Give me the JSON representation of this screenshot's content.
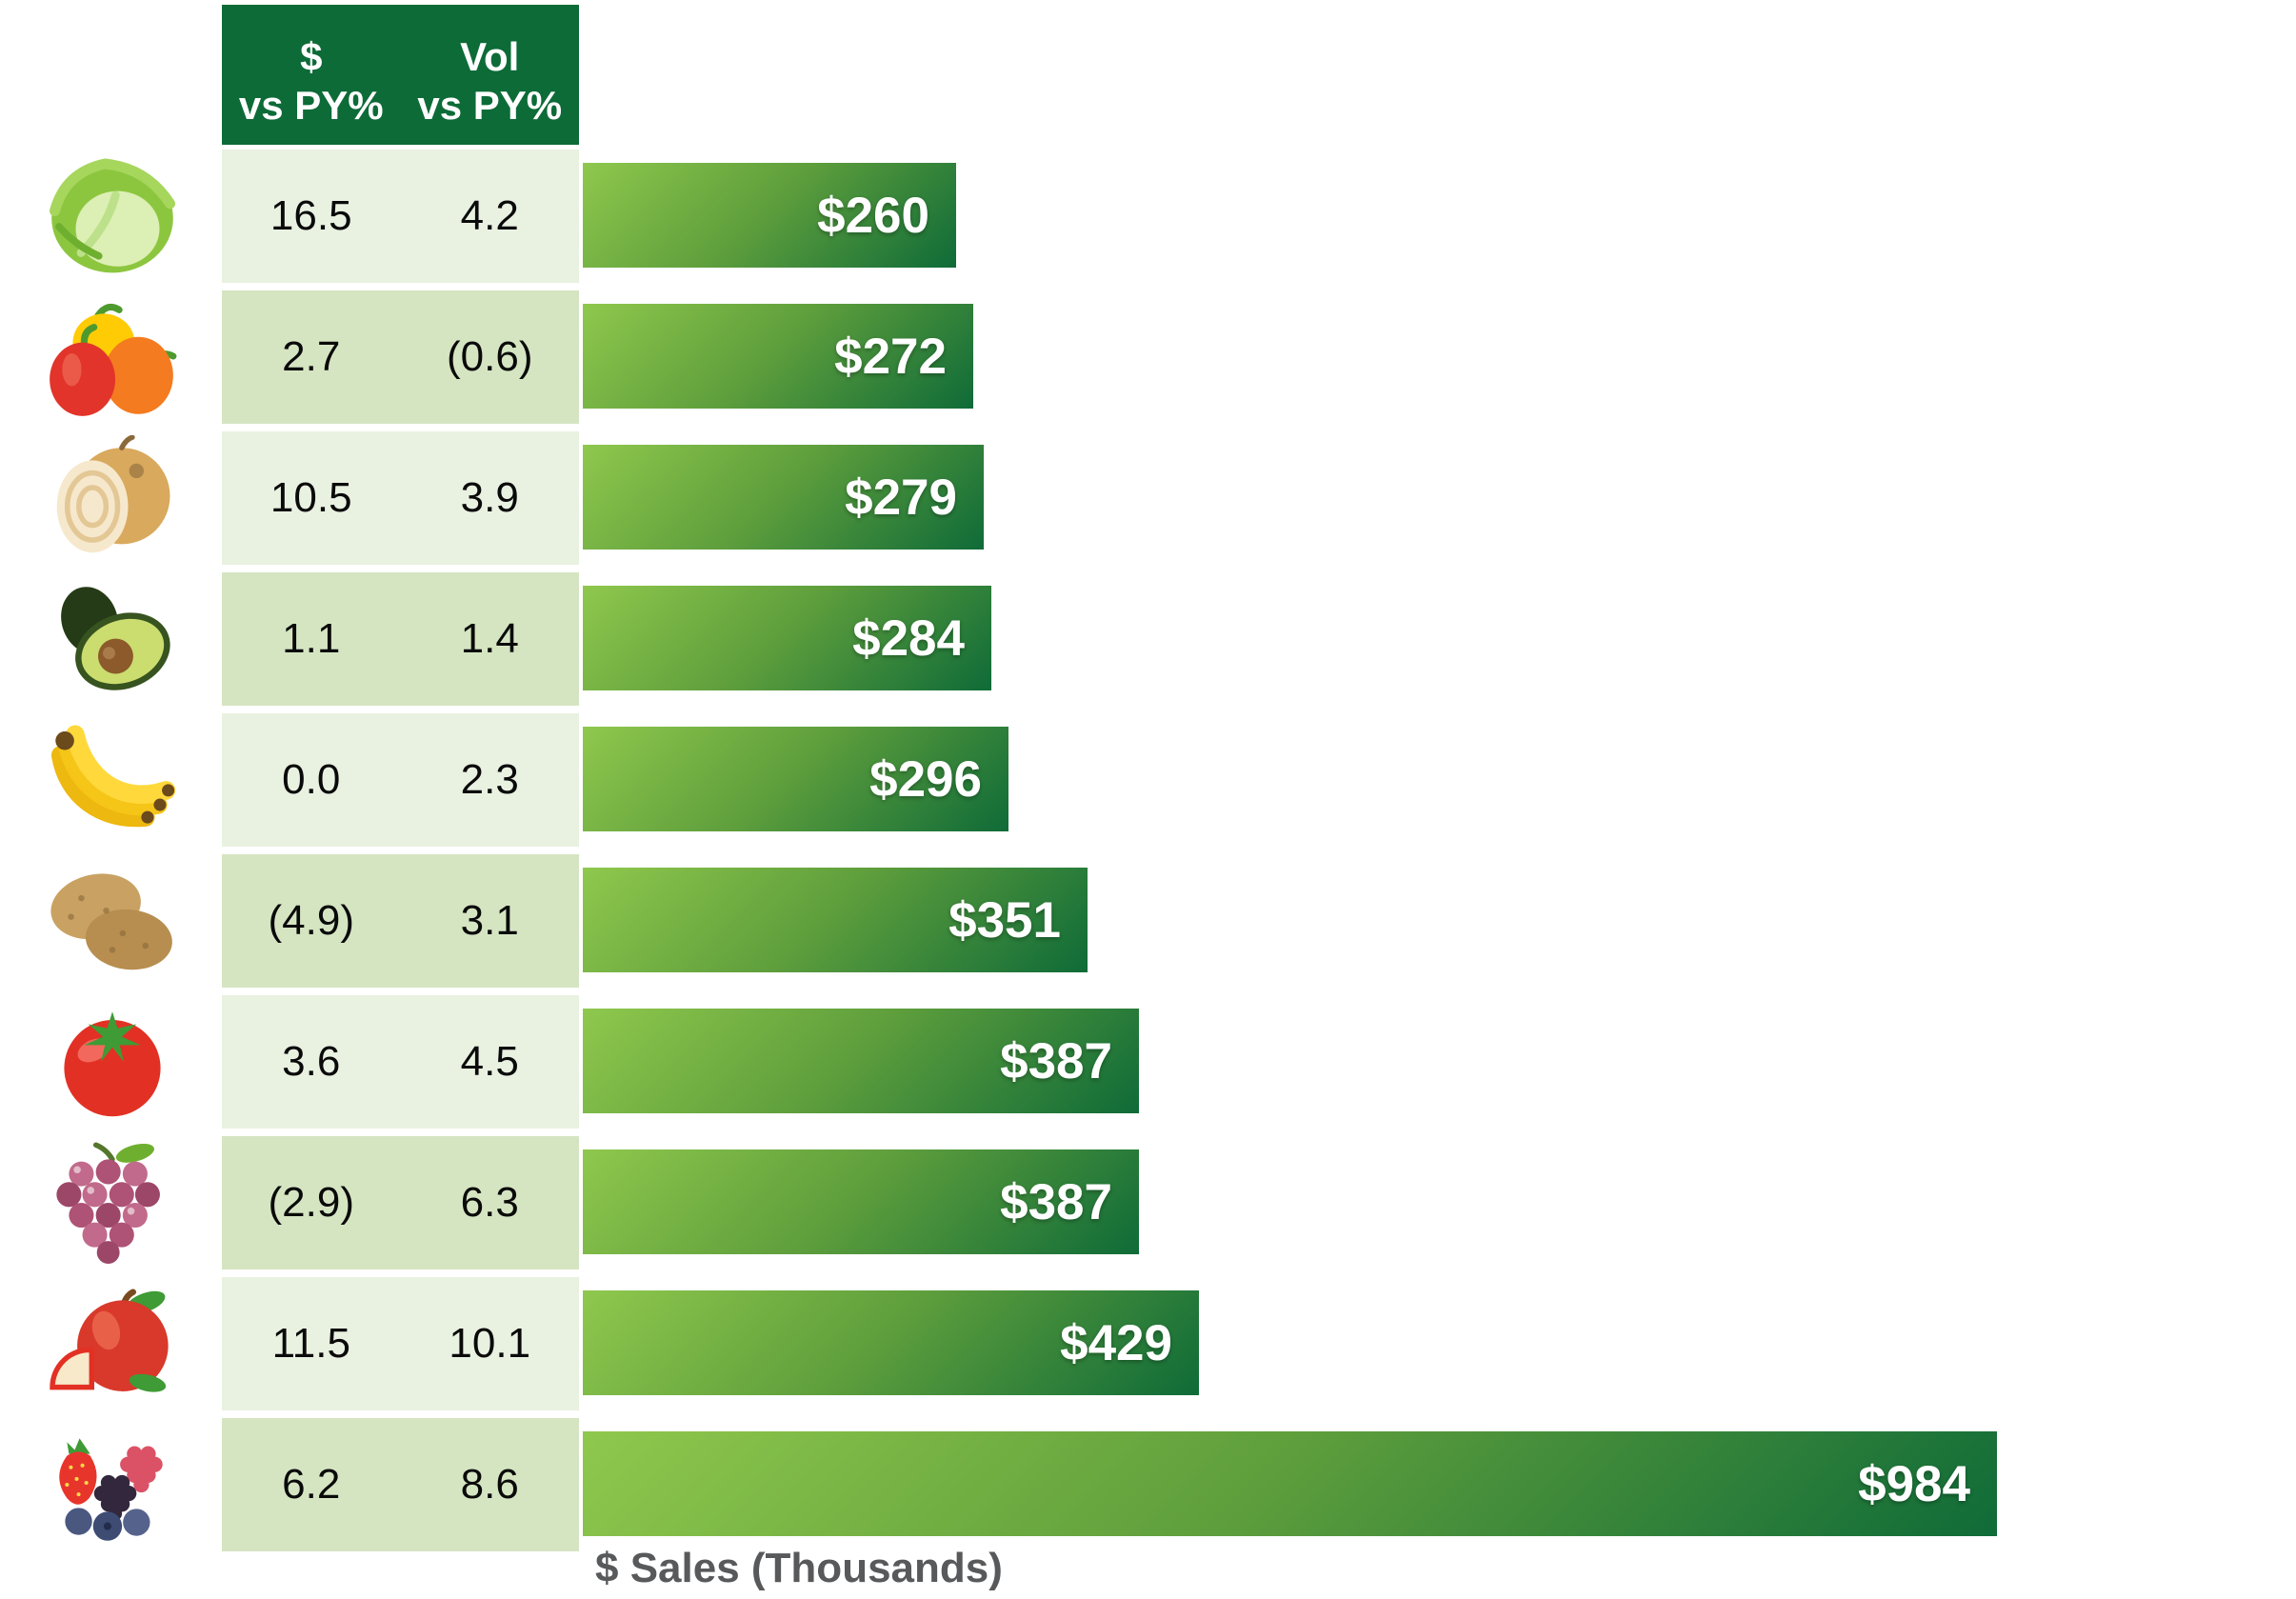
{
  "table": {
    "header": {
      "col1_line1": "$",
      "col1_line2": "vs PY%",
      "col2_line1": "Vol",
      "col2_line2": "vs PY%"
    }
  },
  "rows": [
    {
      "produce": "lettuce",
      "icon": "lettuce-image",
      "dollar_vs_py": "16.5",
      "vol_vs_py": "4.2",
      "sales": "$260",
      "sales_value": 260
    },
    {
      "produce": "bell peppers",
      "icon": "bell-peppers-image",
      "dollar_vs_py": "2.7",
      "vol_vs_py": "(0.6)",
      "sales": "$272",
      "sales_value": 272
    },
    {
      "produce": "onions",
      "icon": "onion-image",
      "dollar_vs_py": "10.5",
      "vol_vs_py": "3.9",
      "sales": "$279",
      "sales_value": 279
    },
    {
      "produce": "avocados",
      "icon": "avocado-image",
      "dollar_vs_py": "1.1",
      "vol_vs_py": "1.4",
      "sales": "$284",
      "sales_value": 284
    },
    {
      "produce": "bananas",
      "icon": "bananas-image",
      "dollar_vs_py": "0.0",
      "vol_vs_py": "2.3",
      "sales": "$296",
      "sales_value": 296
    },
    {
      "produce": "potatoes",
      "icon": "potatoes-image",
      "dollar_vs_py": "(4.9)",
      "vol_vs_py": "3.1",
      "sales": "$351",
      "sales_value": 351
    },
    {
      "produce": "tomatoes",
      "icon": "tomato-image",
      "dollar_vs_py": "3.6",
      "vol_vs_py": "4.5",
      "sales": "$387",
      "sales_value": 387
    },
    {
      "produce": "grapes",
      "icon": "grapes-image",
      "dollar_vs_py": "(2.9)",
      "vol_vs_py": "6.3",
      "sales": "$387",
      "sales_value": 387
    },
    {
      "produce": "apples",
      "icon": "apple-image",
      "dollar_vs_py": "11.5",
      "vol_vs_py": "10.1",
      "sales": "$429",
      "sales_value": 429
    },
    {
      "produce": "berries",
      "icon": "berries-image",
      "dollar_vs_py": "6.2",
      "vol_vs_py": "8.6",
      "sales": "$984",
      "sales_value": 984
    }
  ],
  "axis": {
    "xlabel": "$ Sales (Thousands)"
  },
  "chart_data": {
    "type": "bar",
    "orientation": "horizontal",
    "title": "",
    "xlabel": "$ Sales (Thousands)",
    "ylabel": "",
    "categories": [
      "lettuce",
      "bell peppers",
      "onions",
      "avocados",
      "bananas",
      "potatoes",
      "tomatoes",
      "grapes",
      "apples",
      "berries"
    ],
    "series": [
      {
        "name": "$ vs PY%",
        "values": [
          16.5,
          2.7,
          10.5,
          1.1,
          0.0,
          -4.9,
          3.6,
          -2.9,
          11.5,
          6.2
        ]
      },
      {
        "name": "Vol vs PY%",
        "values": [
          4.2,
          -0.6,
          3.9,
          1.4,
          2.3,
          3.1,
          4.5,
          6.3,
          10.1,
          8.6
        ]
      },
      {
        "name": "$ Sales (Thousands)",
        "values": [
          260,
          272,
          279,
          284,
          296,
          351,
          387,
          387,
          429,
          984
        ]
      }
    ],
    "bar_value_labels": [
      "$260",
      "$272",
      "$279",
      "$284",
      "$296",
      "$351",
      "$387",
      "$387",
      "$429",
      "$984"
    ],
    "xlim": [
      0,
      1000
    ],
    "grid": false,
    "legend": "none",
    "negative_number_format": "parentheses"
  },
  "colors": {
    "header_bg": "#0D6B38",
    "row_light": "#E9F1E1",
    "row_dark": "#D5E5C2",
    "bar_gradient_start": "#8FC84D",
    "bar_gradient_end": "#0F6B38",
    "bar_label_text": "#FFFFFF",
    "axis_label_text": "#58595B",
    "table_text": "#0A0A0A"
  }
}
